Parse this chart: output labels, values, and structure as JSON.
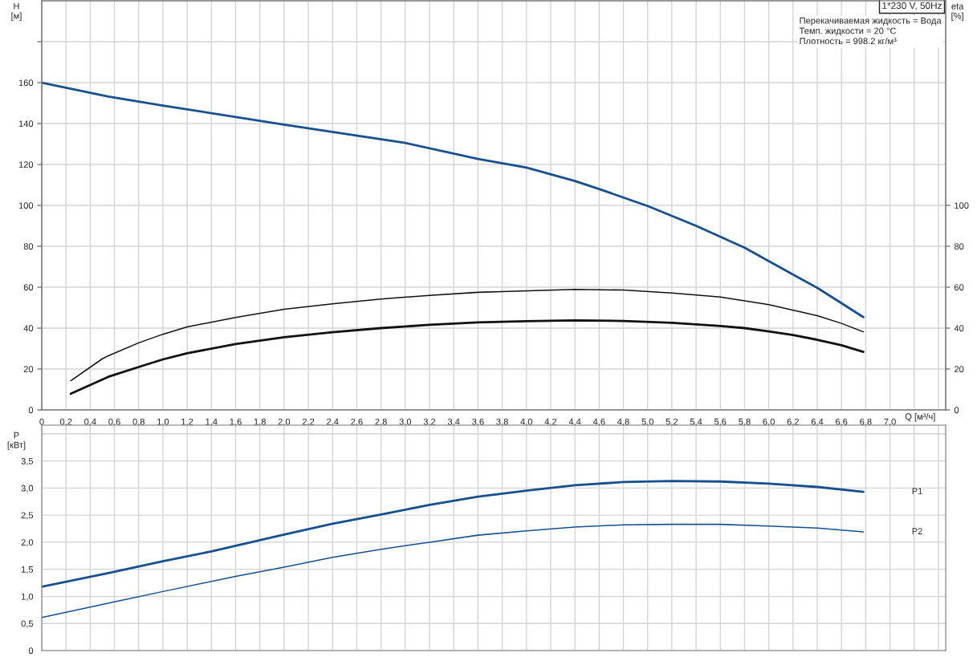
{
  "chart_data": [
    {
      "type": "line",
      "ylabel": "H\n[м]",
      "y2label": "eta\n[%]",
      "xlabel": "Q [м³/ч]",
      "annotations": [
        "1*230 V, 50Hz",
        "Перекачиваемая жидкость = Вода\nТемп. жидкости = 20 °C\nПлотность = 998.2 кг/м³"
      ],
      "xlim": [
        0,
        7.46
      ],
      "ylim": [
        0,
        200
      ],
      "y2lim": [
        0,
        200
      ],
      "xticks": [
        0,
        {
          "value": 0.2,
          "label": "0,2"
        },
        {
          "value": 0.4,
          "label": "0,4"
        },
        {
          "value": 0.6,
          "label": "0,6"
        },
        {
          "value": 0.8,
          "label": "0,8"
        },
        {
          "value": 1.0,
          "label": "1,0"
        },
        {
          "value": 1.2,
          "label": "1,2"
        },
        {
          "value": 1.4,
          "label": "1,4"
        },
        {
          "value": 1.6,
          "label": "1,6"
        },
        {
          "value": 1.8,
          "label": "1,8"
        },
        {
          "value": 2.0,
          "label": "2,0"
        },
        {
          "value": 2.2,
          "label": "2,2"
        },
        {
          "value": 2.4,
          "label": "2,4"
        },
        {
          "value": 2.6,
          "label": "2,6"
        },
        {
          "value": 2.8,
          "label": "2,8"
        },
        {
          "value": 3.0,
          "label": "3,0"
        },
        {
          "value": 3.2,
          "label": "3,2"
        },
        {
          "value": 3.4,
          "label": "3,4"
        },
        {
          "value": 3.6,
          "label": "3,6"
        },
        {
          "value": 3.8,
          "label": "3,8"
        },
        {
          "value": 4.0,
          "label": "4,0"
        },
        {
          "value": 4.2,
          "label": "4,2"
        },
        {
          "value": 4.4,
          "label": "4,4"
        },
        {
          "value": 4.6,
          "label": "4,6"
        },
        {
          "value": 4.8,
          "label": "4,8"
        },
        {
          "value": 5.0,
          "label": "5,0"
        },
        {
          "value": 5.2,
          "label": "5,2"
        },
        {
          "value": 5.4,
          "label": "5,4"
        },
        {
          "value": 5.6,
          "label": "5,6"
        },
        {
          "value": 5.8,
          "label": "5,8"
        },
        {
          "value": 6.0,
          "label": "6,0"
        },
        {
          "value": 6.2,
          "label": "6,2"
        },
        {
          "value": 6.4,
          "label": "6,4"
        },
        {
          "value": 6.6,
          "label": "6,6"
        },
        {
          "value": 6.8,
          "label": "6,8"
        },
        {
          "value": 7.0,
          "label": "7,0"
        },
        {
          "value": 7.2,
          "label": null
        },
        {
          "value": 7.4,
          "label": null
        }
      ],
      "yticks": [
        0,
        20,
        40,
        60,
        80,
        100,
        120,
        140,
        160,
        {
          "value": 180,
          "label": null
        }
      ],
      "y2ticks": [
        0,
        20,
        40,
        60,
        80,
        100
      ],
      "grid": true,
      "legend": false,
      "marker": "none",
      "line_style": "solid",
      "series": [
        {
          "color": "#17508c",
          "x": [
            0,
            0.55,
            1.0,
            2.0,
            3.0,
            3.6,
            4.0,
            4.4,
            4.6,
            5.0,
            5.4,
            5.8,
            6.2,
            6.4,
            6.78
          ],
          "values": [
            160,
            153.2,
            148.8,
            139.5,
            130.5,
            122.7,
            118.5,
            111.9,
            108,
            99.7,
            90,
            79.3,
            66.2,
            59.7,
            45.4
          ]
        },
        {
          "color": "#111111",
          "x": [
            0.24,
            0.5,
            0.55,
            0.8,
            1.0,
            1.2,
            1.6,
            2.0,
            2.4,
            2.8,
            3.2,
            3.6,
            3.8,
            4.4,
            4.8,
            5.2,
            5.6,
            6.0,
            6.4,
            6.6,
            6.78
          ],
          "values": [
            14.3,
            25,
            26.5,
            32.8,
            37,
            40.6,
            45.2,
            49.2,
            51.9,
            54.2,
            56,
            57.5,
            57.8,
            58.9,
            58.6,
            57.2,
            55.2,
            51.5,
            46.1,
            42.3,
            38.2
          ]
        },
        {
          "color": "#111111",
          "x": [
            0.24,
            0.55,
            0.8,
            1.0,
            1.2,
            1.6,
            2.0,
            2.4,
            2.8,
            3.2,
            3.6,
            4.0,
            4.4,
            4.8,
            5.2,
            5.6,
            5.8,
            6.0,
            6.2,
            6.4,
            6.6,
            6.78
          ],
          "values": [
            7.9,
            16.2,
            21,
            24.7,
            27.7,
            32.2,
            35.5,
            38,
            40,
            41.6,
            42.8,
            43.4,
            43.8,
            43.5,
            42.6,
            41,
            40,
            38.4,
            36.6,
            34.3,
            31.6,
            28.4
          ]
        }
      ]
    },
    {
      "type": "line",
      "ylabel": "P\n[кВт]",
      "tick_labels": "y",
      "xlim": [
        0,
        7.46
      ],
      "ylim": [
        0,
        4.16
      ],
      "xticks": [
        0,
        0.2,
        0.4,
        0.6,
        0.8,
        1.0,
        1.2,
        1.4,
        1.6,
        1.8,
        2.0,
        2.2,
        2.4,
        2.6,
        2.8,
        3.0,
        3.2,
        3.4,
        3.6,
        3.8,
        4.0,
        4.2,
        4.4,
        4.6,
        4.8,
        5.0,
        5.2,
        5.4,
        5.6,
        5.8,
        6.0,
        6.2,
        6.4,
        6.6,
        6.8,
        7.0,
        7.2,
        7.4
      ],
      "yticks": [
        0,
        {
          "value": 0.5,
          "label": "0,5"
        },
        {
          "value": 1.0,
          "label": "1,0"
        },
        {
          "value": 1.5,
          "label": "1,5"
        },
        {
          "value": 2.0,
          "label": "2,0"
        },
        {
          "value": 2.5,
          "label": "2,5"
        },
        {
          "value": 3.0,
          "label": "3,0"
        },
        {
          "value": 3.5,
          "label": "3,5"
        },
        {
          "value": 4.0,
          "label": null
        }
      ],
      "grid": true,
      "legend": false,
      "marker": "none",
      "line_style": "solid",
      "series": [
        {
          "name": "P1",
          "color": "#17508c",
          "x": [
            0,
            0.55,
            1.0,
            1.4,
            2.0,
            2.4,
            2.8,
            3.2,
            3.6,
            4.0,
            4.4,
            4.8,
            5.2,
            5.6,
            6.0,
            6.4,
            6.78
          ],
          "values": [
            1.18,
            1.43,
            1.65,
            1.83,
            2.14,
            2.34,
            2.51,
            2.69,
            2.84,
            2.95,
            3.05,
            3.11,
            3.13,
            3.12,
            3.08,
            3.02,
            2.93
          ]
        },
        {
          "name": "P2",
          "color": "#17508c",
          "x": [
            0,
            0.6,
            1.0,
            1.6,
            2.0,
            2.4,
            2.8,
            3.2,
            3.6,
            4.0,
            4.4,
            4.8,
            5.2,
            5.6,
            6.0,
            6.4,
            6.78
          ],
          "values": [
            0.61,
            0.9,
            1.09,
            1.37,
            1.54,
            1.72,
            1.87,
            2.0,
            2.13,
            2.21,
            2.28,
            2.32,
            2.33,
            2.33,
            2.3,
            2.26,
            2.19
          ]
        }
      ]
    }
  ]
}
